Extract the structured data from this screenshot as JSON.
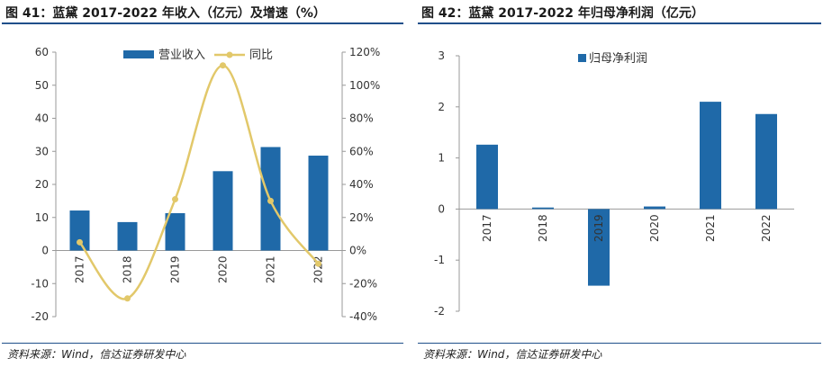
{
  "charts": [
    {
      "title": "图 41：蓝黛 2017-2022 年收入（亿元）及增速（%）",
      "source": "资料来源：Wind，信达证券研发中心"
    },
    {
      "title": "图 42：蓝黛 2017-2022 年归母净利润（亿元）",
      "source": "资料来源：Wind，信达证券研发中心"
    }
  ],
  "chart_data": [
    {
      "type": "bar+line",
      "categories": [
        "2017",
        "2018",
        "2019",
        "2020",
        "2021",
        "2022"
      ],
      "series": [
        {
          "name": "营业收入",
          "type": "bar",
          "axis": "left",
          "color": "#1f69a8",
          "values": [
            12.1,
            8.6,
            11.3,
            24.0,
            31.3,
            28.7
          ]
        },
        {
          "name": "同比",
          "type": "line",
          "axis": "right",
          "color": "#e2c86a",
          "values": [
            5,
            -29,
            31,
            112,
            30,
            -8
          ]
        }
      ],
      "y_left": {
        "min": -20,
        "max": 60,
        "step": 10,
        "ticks": [
          "-20",
          "-10",
          "0",
          "10",
          "20",
          "30",
          "40",
          "50",
          "60"
        ]
      },
      "y_right": {
        "min": -40,
        "max": 120,
        "step": 20,
        "ticks": [
          "-40%",
          "-20%",
          "0%",
          "20%",
          "40%",
          "60%",
          "80%",
          "100%",
          "120%"
        ]
      },
      "legend_position": "top"
    },
    {
      "type": "bar",
      "categories": [
        "2017",
        "2018",
        "2019",
        "2020",
        "2021",
        "2022"
      ],
      "series": [
        {
          "name": "归母净利润",
          "color": "#1f69a8",
          "values": [
            1.26,
            0.03,
            -1.5,
            0.05,
            2.1,
            1.86
          ]
        }
      ],
      "y": {
        "min": -2,
        "max": 3,
        "step": 1,
        "ticks": [
          "-2",
          "-1",
          "0",
          "1",
          "2",
          "3"
        ]
      },
      "legend_position": "top"
    }
  ]
}
